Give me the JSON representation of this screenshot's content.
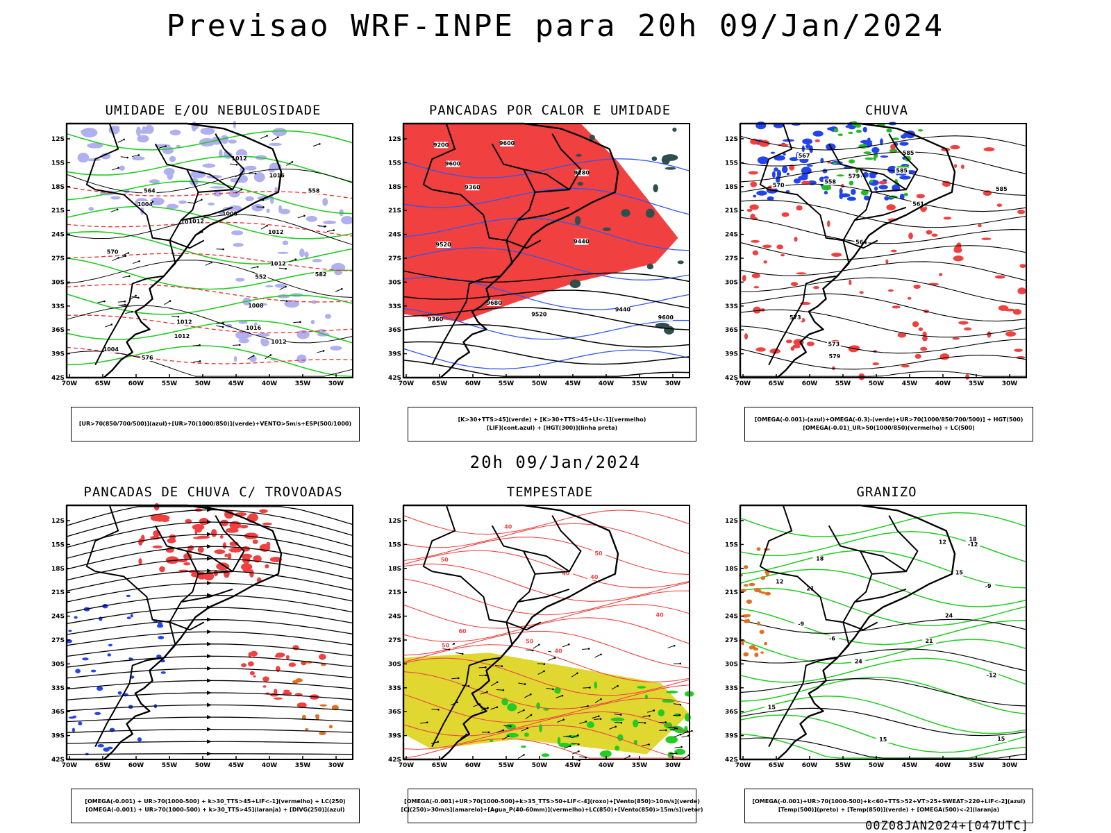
{
  "page": {
    "title": "Previsao WRF-INPE  para 20h 09/Jan/2024",
    "middle_time": "20h 09/Jan/2024",
    "run_stamp": "00Z08JAN2024+[047UTC]"
  },
  "axes": {
    "lat_labels": [
      "12S",
      "15S",
      "18S",
      "21S",
      "24S",
      "27S",
      "30S",
      "33S",
      "36S",
      "39S",
      "42S"
    ],
    "lon_labels": [
      "70W",
      "65W",
      "60W",
      "55W",
      "50W",
      "45W",
      "40W",
      "35W",
      "30W"
    ]
  },
  "panels": [
    {
      "id": "umidade",
      "title": "UMIDADE E/OU NEBULOSIDADE",
      "legend": [
        "[UR>70(850/700/500)](azul)+[UR>70(1000/850)](verde)+VENTO>5m/s+ESP(500/1000)"
      ],
      "contour_labels": [
        "1012",
        "1008",
        "1004",
        "1012",
        "1004",
        "1012",
        "1016",
        "1012",
        "1016",
        "1012",
        "1008",
        "1012",
        "1012",
        "570",
        "576",
        "582",
        "564",
        "558",
        "552",
        "1012"
      ],
      "colors": {
        "blue": "#b0b0f0",
        "green": "#22cc22",
        "red": "#ee3333"
      }
    },
    {
      "id": "pancadas-calor",
      "title": "PANCADAS POR CALOR E UMIDADE",
      "legend": [
        "[K>30+TTS>45](verde) + [K>30+TTS>45+LI<-1](vermelho)",
        "[LIF](cont.azul) + [HGT(300)](linha preta)"
      ],
      "contour_labels": [
        "9600",
        "9520",
        "9440",
        "9360",
        "9280",
        "9200",
        "9680",
        "9600",
        "9600",
        "9360",
        "9520",
        "9440"
      ],
      "colors": {
        "red": "#f04040",
        "dark": "#2f4f4f",
        "blue": "#3355ee"
      }
    },
    {
      "id": "chuva",
      "title": "CHUVA",
      "legend": [
        "[OMEGA(-0.001)-(azul)+OMEGA(-0.3)-(verde)+UR>70(1000/850/700/500)] + HGT(500)",
        "[OMEGA(-0.01)_UR>50(1000/850)(vermelho) + LC(500)"
      ],
      "contour_labels": [
        "585",
        "585",
        "585",
        "579",
        "573",
        "570",
        "567",
        "564",
        "561",
        "558",
        "579",
        "573"
      ],
      "colors": {
        "red": "#f04040",
        "blue": "#2244ee",
        "green": "#22bb22"
      }
    },
    {
      "id": "trovoadas",
      "title": "PANCADAS DE CHUVA C/ TROVOADAS",
      "legend": [
        "[OMEGA(-0.001) + UR>70(1000-500) + k>30_TTS>45+LIF<-1](vermelho) + LC(250)",
        "[OMEGA(-0.001) + UR>70(1000-500) + k>30_TTS>45](laranja) + [DIVG(250)](azul)"
      ],
      "contour_labels": [],
      "colors": {
        "red": "#f04040",
        "orange": "#e07020",
        "blue": "#2244ee"
      }
    },
    {
      "id": "tempestade",
      "title": "TEMPESTADE",
      "legend": [
        "[OMEGA(-0.001)+UR>70(1000-500)+k>35_TTS>50+LIF<-4](roxo)+[Vento(850)>10m/s](verde)",
        "[CJ(250)>30m/s](amarelo)+[Agua_P(40-60mm)](vermelho)+LC(850)+[Vento(850)>15m/s](vetor)"
      ],
      "contour_labels": [
        "40",
        "50",
        "40",
        "50",
        "40",
        "60",
        "50",
        "40",
        "50",
        "40"
      ],
      "colors": {
        "yellow": "#e0d830",
        "green": "#22cc22",
        "red": "#ee4444"
      }
    },
    {
      "id": "granizo",
      "title": "GRANIZO",
      "legend": [
        "[OMEGA(-0.001)+UR>70(1000-500)+k<60+TTS>52+VT>25+SWEAT>220+LIF<-2](azul)",
        "[Temp(500)](preto) + [Temp(850)](verde) + [OMEGA(500)<-2](laranja)"
      ],
      "contour_labels": [
        "21",
        "18",
        "15",
        "21",
        "24",
        "24",
        "18",
        "15",
        "12",
        "-9",
        "-12",
        "15",
        "-6",
        "12",
        "15",
        "-12",
        "-9"
      ],
      "colors": {
        "green": "#22cc22",
        "orange": "#e07020"
      }
    }
  ]
}
